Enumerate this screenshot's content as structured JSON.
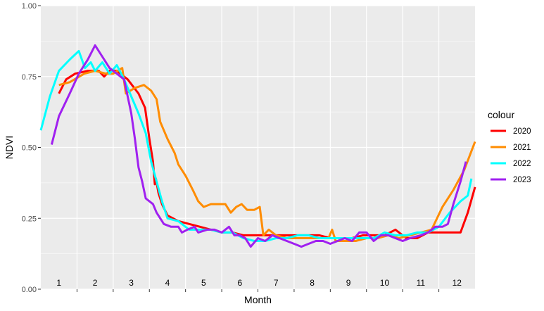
{
  "chart_data": {
    "type": "line",
    "xlabel": "Month",
    "ylabel": "NDVI",
    "xlim": [
      0.5,
      12.5
    ],
    "ylim": [
      0,
      1
    ],
    "y_ticks": [
      0.0,
      0.25,
      0.5,
      0.75,
      1.0
    ],
    "y_tick_labels": [
      "0.00",
      "0.25",
      "0.50",
      "0.75",
      "1.00"
    ],
    "month_labels": [
      "1",
      "2",
      "3",
      "4",
      "5",
      "6",
      "7",
      "8",
      "9",
      "10",
      "11",
      "12"
    ],
    "grid": true,
    "panel_background": "#ebebeb",
    "legend": {
      "title": "colour",
      "position": "right"
    },
    "series": [
      {
        "name": "2020",
        "color": "#ff0000",
        "points": [
          [
            1.0,
            0.69
          ],
          [
            1.2,
            0.74
          ],
          [
            1.45,
            0.76
          ],
          [
            1.8,
            0.77
          ],
          [
            2.1,
            0.77
          ],
          [
            2.25,
            0.75
          ],
          [
            2.4,
            0.77
          ],
          [
            2.6,
            0.77
          ],
          [
            2.9,
            0.74
          ],
          [
            3.2,
            0.69
          ],
          [
            3.38,
            0.64
          ],
          [
            3.5,
            0.53
          ],
          [
            3.6,
            0.45
          ],
          [
            3.65,
            0.37
          ],
          [
            3.68,
            0.39
          ],
          [
            3.75,
            0.34
          ],
          [
            3.85,
            0.3
          ],
          [
            4.0,
            0.26
          ],
          [
            4.3,
            0.24
          ],
          [
            4.6,
            0.23
          ],
          [
            4.9,
            0.22
          ],
          [
            5.2,
            0.21
          ],
          [
            5.5,
            0.2
          ],
          [
            5.8,
            0.2
          ],
          [
            6.1,
            0.19
          ],
          [
            6.4,
            0.19
          ],
          [
            6.7,
            0.19
          ],
          [
            7.0,
            0.19
          ],
          [
            7.3,
            0.19
          ],
          [
            7.6,
            0.19
          ],
          [
            7.9,
            0.19
          ],
          [
            8.2,
            0.19
          ],
          [
            8.5,
            0.18
          ],
          [
            8.8,
            0.18
          ],
          [
            9.1,
            0.18
          ],
          [
            9.4,
            0.19
          ],
          [
            9.7,
            0.19
          ],
          [
            10.0,
            0.19
          ],
          [
            10.3,
            0.21
          ],
          [
            10.6,
            0.18
          ],
          [
            10.9,
            0.18
          ],
          [
            11.2,
            0.2
          ],
          [
            11.5,
            0.2
          ],
          [
            11.9,
            0.2
          ],
          [
            12.1,
            0.2
          ],
          [
            12.3,
            0.27
          ],
          [
            12.5,
            0.36
          ]
        ]
      },
      {
        "name": "2021",
        "color": "#ff8c00",
        "points": [
          [
            1.0,
            0.72
          ],
          [
            1.3,
            0.73
          ],
          [
            1.7,
            0.76
          ],
          [
            2.0,
            0.77
          ],
          [
            2.3,
            0.76
          ],
          [
            2.5,
            0.76
          ],
          [
            2.75,
            0.78
          ],
          [
            2.85,
            0.69
          ],
          [
            3.1,
            0.71
          ],
          [
            3.35,
            0.72
          ],
          [
            3.55,
            0.7
          ],
          [
            3.7,
            0.67
          ],
          [
            3.8,
            0.59
          ],
          [
            4.0,
            0.53
          ],
          [
            4.2,
            0.48
          ],
          [
            4.3,
            0.44
          ],
          [
            4.5,
            0.4
          ],
          [
            4.7,
            0.35
          ],
          [
            4.85,
            0.31
          ],
          [
            5.0,
            0.29
          ],
          [
            5.2,
            0.3
          ],
          [
            5.4,
            0.3
          ],
          [
            5.6,
            0.3
          ],
          [
            5.75,
            0.27
          ],
          [
            5.9,
            0.29
          ],
          [
            6.05,
            0.3
          ],
          [
            6.2,
            0.28
          ],
          [
            6.4,
            0.28
          ],
          [
            6.55,
            0.29
          ],
          [
            6.65,
            0.19
          ],
          [
            6.8,
            0.21
          ],
          [
            7.0,
            0.19
          ],
          [
            7.3,
            0.18
          ],
          [
            7.6,
            0.18
          ],
          [
            7.9,
            0.18
          ],
          [
            8.2,
            0.18
          ],
          [
            8.45,
            0.18
          ],
          [
            8.55,
            0.21
          ],
          [
            8.65,
            0.17
          ],
          [
            8.9,
            0.17
          ],
          [
            9.2,
            0.17
          ],
          [
            9.5,
            0.18
          ],
          [
            9.8,
            0.18
          ],
          [
            10.1,
            0.19
          ],
          [
            10.4,
            0.18
          ],
          [
            10.7,
            0.19
          ],
          [
            11.0,
            0.2
          ],
          [
            11.3,
            0.21
          ],
          [
            11.6,
            0.29
          ],
          [
            11.9,
            0.35
          ],
          [
            12.2,
            0.42
          ],
          [
            12.5,
            0.52
          ]
        ]
      },
      {
        "name": "2022",
        "color": "#00ffff",
        "points": [
          [
            0.5,
            0.56
          ],
          [
            0.75,
            0.68
          ],
          [
            1.0,
            0.77
          ],
          [
            1.3,
            0.81
          ],
          [
            1.55,
            0.84
          ],
          [
            1.72,
            0.78
          ],
          [
            1.88,
            0.8
          ],
          [
            2.0,
            0.77
          ],
          [
            2.2,
            0.8
          ],
          [
            2.4,
            0.76
          ],
          [
            2.6,
            0.79
          ],
          [
            2.8,
            0.74
          ],
          [
            3.0,
            0.68
          ],
          [
            3.2,
            0.62
          ],
          [
            3.4,
            0.55
          ],
          [
            3.55,
            0.45
          ],
          [
            3.7,
            0.38
          ],
          [
            3.85,
            0.31
          ],
          [
            4.0,
            0.25
          ],
          [
            4.3,
            0.24
          ],
          [
            4.6,
            0.21
          ],
          [
            4.9,
            0.21
          ],
          [
            5.2,
            0.21
          ],
          [
            5.5,
            0.2
          ],
          [
            5.8,
            0.2
          ],
          [
            6.1,
            0.18
          ],
          [
            6.4,
            0.17
          ],
          [
            6.7,
            0.17
          ],
          [
            7.0,
            0.18
          ],
          [
            7.3,
            0.18
          ],
          [
            7.6,
            0.19
          ],
          [
            7.9,
            0.19
          ],
          [
            8.2,
            0.18
          ],
          [
            8.5,
            0.18
          ],
          [
            8.8,
            0.18
          ],
          [
            9.1,
            0.18
          ],
          [
            9.4,
            0.18
          ],
          [
            9.7,
            0.18
          ],
          [
            10.0,
            0.2
          ],
          [
            10.3,
            0.19
          ],
          [
            10.6,
            0.19
          ],
          [
            10.9,
            0.2
          ],
          [
            11.2,
            0.2
          ],
          [
            11.5,
            0.22
          ],
          [
            11.8,
            0.27
          ],
          [
            12.1,
            0.31
          ],
          [
            12.3,
            0.33
          ],
          [
            12.4,
            0.39
          ]
        ]
      },
      {
        "name": "2023",
        "color": "#a020f0",
        "points": [
          [
            0.8,
            0.51
          ],
          [
            1.0,
            0.61
          ],
          [
            1.3,
            0.69
          ],
          [
            1.55,
            0.76
          ],
          [
            1.8,
            0.81
          ],
          [
            2.0,
            0.86
          ],
          [
            2.2,
            0.82
          ],
          [
            2.4,
            0.78
          ],
          [
            2.6,
            0.76
          ],
          [
            2.8,
            0.74
          ],
          [
            3.0,
            0.62
          ],
          [
            3.1,
            0.53
          ],
          [
            3.2,
            0.43
          ],
          [
            3.3,
            0.38
          ],
          [
            3.4,
            0.32
          ],
          [
            3.5,
            0.31
          ],
          [
            3.6,
            0.3
          ],
          [
            3.7,
            0.27
          ],
          [
            3.8,
            0.25
          ],
          [
            3.9,
            0.23
          ],
          [
            4.1,
            0.22
          ],
          [
            4.3,
            0.22
          ],
          [
            4.4,
            0.2
          ],
          [
            4.55,
            0.21
          ],
          [
            4.75,
            0.22
          ],
          [
            4.85,
            0.2
          ],
          [
            5.1,
            0.21
          ],
          [
            5.3,
            0.21
          ],
          [
            5.5,
            0.2
          ],
          [
            5.7,
            0.22
          ],
          [
            5.85,
            0.19
          ],
          [
            6.0,
            0.19
          ],
          [
            6.15,
            0.18
          ],
          [
            6.3,
            0.15
          ],
          [
            6.5,
            0.18
          ],
          [
            6.7,
            0.17
          ],
          [
            6.9,
            0.19
          ],
          [
            7.1,
            0.18
          ],
          [
            7.3,
            0.17
          ],
          [
            7.5,
            0.16
          ],
          [
            7.7,
            0.15
          ],
          [
            7.9,
            0.16
          ],
          [
            8.1,
            0.17
          ],
          [
            8.3,
            0.17
          ],
          [
            8.5,
            0.16
          ],
          [
            8.7,
            0.17
          ],
          [
            8.9,
            0.18
          ],
          [
            9.1,
            0.17
          ],
          [
            9.3,
            0.2
          ],
          [
            9.5,
            0.2
          ],
          [
            9.7,
            0.17
          ],
          [
            9.9,
            0.19
          ],
          [
            10.1,
            0.19
          ],
          [
            10.3,
            0.18
          ],
          [
            10.5,
            0.17
          ],
          [
            10.7,
            0.18
          ],
          [
            11.0,
            0.19
          ],
          [
            11.2,
            0.2
          ],
          [
            11.4,
            0.22
          ],
          [
            11.6,
            0.22
          ],
          [
            11.75,
            0.23
          ],
          [
            11.9,
            0.3
          ],
          [
            12.1,
            0.38
          ],
          [
            12.25,
            0.45
          ]
        ]
      }
    ]
  }
}
